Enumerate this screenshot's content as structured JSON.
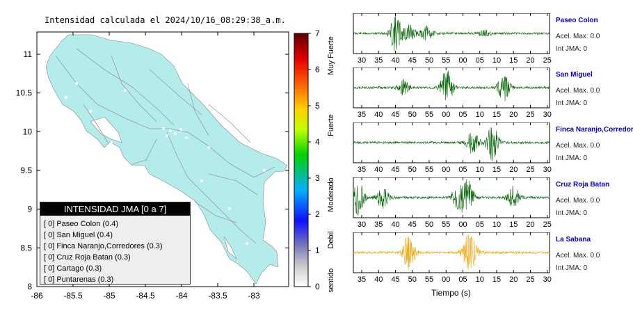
{
  "map": {
    "title": "Intensidad calculada el 2024/10/16_08:29:38_a.m.",
    "lat_ticks": [
      "11",
      "10.5",
      "10",
      "9.5",
      "9",
      "8.5",
      "8"
    ],
    "lon_ticks": [
      "-86",
      "-85.5",
      "-85",
      "-84.5",
      "-84",
      "-83.5",
      "-83"
    ],
    "land_color": "#b4ecec",
    "legend": {
      "header": "INTENSIDAD JMA [0 a 7]",
      "rows": [
        {
          "text": "[ 0]  Paseo Colon (0.4)"
        },
        {
          "text": "[ 0]  San Miguel (0.4)"
        },
        {
          "text": "[ 0]  Finca Naranjo,Corredores (0.3)"
        },
        {
          "text": "[ 0]  Cruz Roja Batan (0.3)"
        },
        {
          "text": "[ 0]  Cartago (0.3)"
        },
        {
          "text": "[ 0]  Puntarenas (0.3)"
        }
      ]
    }
  },
  "colorbar": {
    "ticks": [
      "7",
      "6",
      "5",
      "4",
      "3",
      "2",
      "1",
      "0"
    ],
    "category_labels": [
      "Muy Fuerte",
      "Fuerte",
      "Moderado",
      "Debil",
      "No sentido"
    ]
  },
  "chart_data": [
    {
      "type": "line",
      "title": "Paseo Colon",
      "station": "Paseo Colon",
      "accel_label": "Acel. Max. 0.0",
      "jma_label": "Int JMA: 0",
      "color": "#006400",
      "x_ticks": [
        "30",
        "35",
        "40",
        "45",
        "50",
        "55",
        "00",
        "05",
        "10",
        "15",
        "20",
        "25"
      ],
      "bursts": [
        [
          2.6,
          1.0
        ],
        [
          3.4,
          0.5
        ],
        [
          4.5,
          0.4
        ],
        [
          8.0,
          0.15
        ]
      ]
    },
    {
      "type": "line",
      "title": "San Miguel",
      "station": "San Miguel",
      "accel_label": "Acel. Max. 0.0",
      "jma_label": "Int JMA: 0",
      "color": "#006400",
      "x_ticks": [
        "35",
        "40",
        "45",
        "50",
        "55",
        "00",
        "05",
        "10",
        "15",
        "20",
        "25",
        "30"
      ],
      "bursts": [
        [
          3.1,
          0.4
        ],
        [
          5.7,
          1.0
        ],
        [
          9.2,
          0.7
        ]
      ]
    },
    {
      "type": "line",
      "title": "Finca Naranjo,Corredores",
      "station": "Finca Naranjo,Corredores",
      "accel_label": "Acel. Max. 0.0",
      "jma_label": "Int JMA: 0",
      "color": "#006400",
      "x_ticks": [
        "35",
        "40",
        "45",
        "50",
        "55",
        "00",
        "05",
        "10",
        "15",
        "20",
        "25",
        "30"
      ],
      "bursts": [
        [
          7.3,
          0.6
        ],
        [
          8.5,
          1.0
        ]
      ]
    },
    {
      "type": "line",
      "title": "Cruz Roja Batan",
      "station": "Cruz Roja Batan",
      "accel_label": "Acel. Max. 0.0",
      "jma_label": "Int JMA: 0",
      "color": "#006400",
      "x_ticks": [
        "30",
        "35",
        "40",
        "45",
        "50",
        "55",
        "00",
        "05",
        "10",
        "15",
        "20",
        "25"
      ],
      "bursts": [
        [
          0.3,
          1.0
        ],
        [
          1.8,
          0.6
        ],
        [
          6.4,
          0.7
        ],
        [
          7.0,
          0.9
        ],
        [
          9.8,
          0.6
        ]
      ]
    },
    {
      "type": "line",
      "title": "La Sabana",
      "station": "La Sabana",
      "accel_label": "Acel. Max. 0.0",
      "jma_label": "Int JMA: 0",
      "color": "#f0a000",
      "x_ticks": [
        "35",
        "40",
        "45",
        "50",
        "55",
        "00",
        "05",
        "10",
        "15",
        "20",
        "25",
        "30"
      ],
      "xlabel": "Tiempo (s)",
      "bursts": [
        [
          3.4,
          1.0
        ],
        [
          7.0,
          0.7
        ],
        [
          7.3,
          0.6
        ]
      ]
    }
  ]
}
